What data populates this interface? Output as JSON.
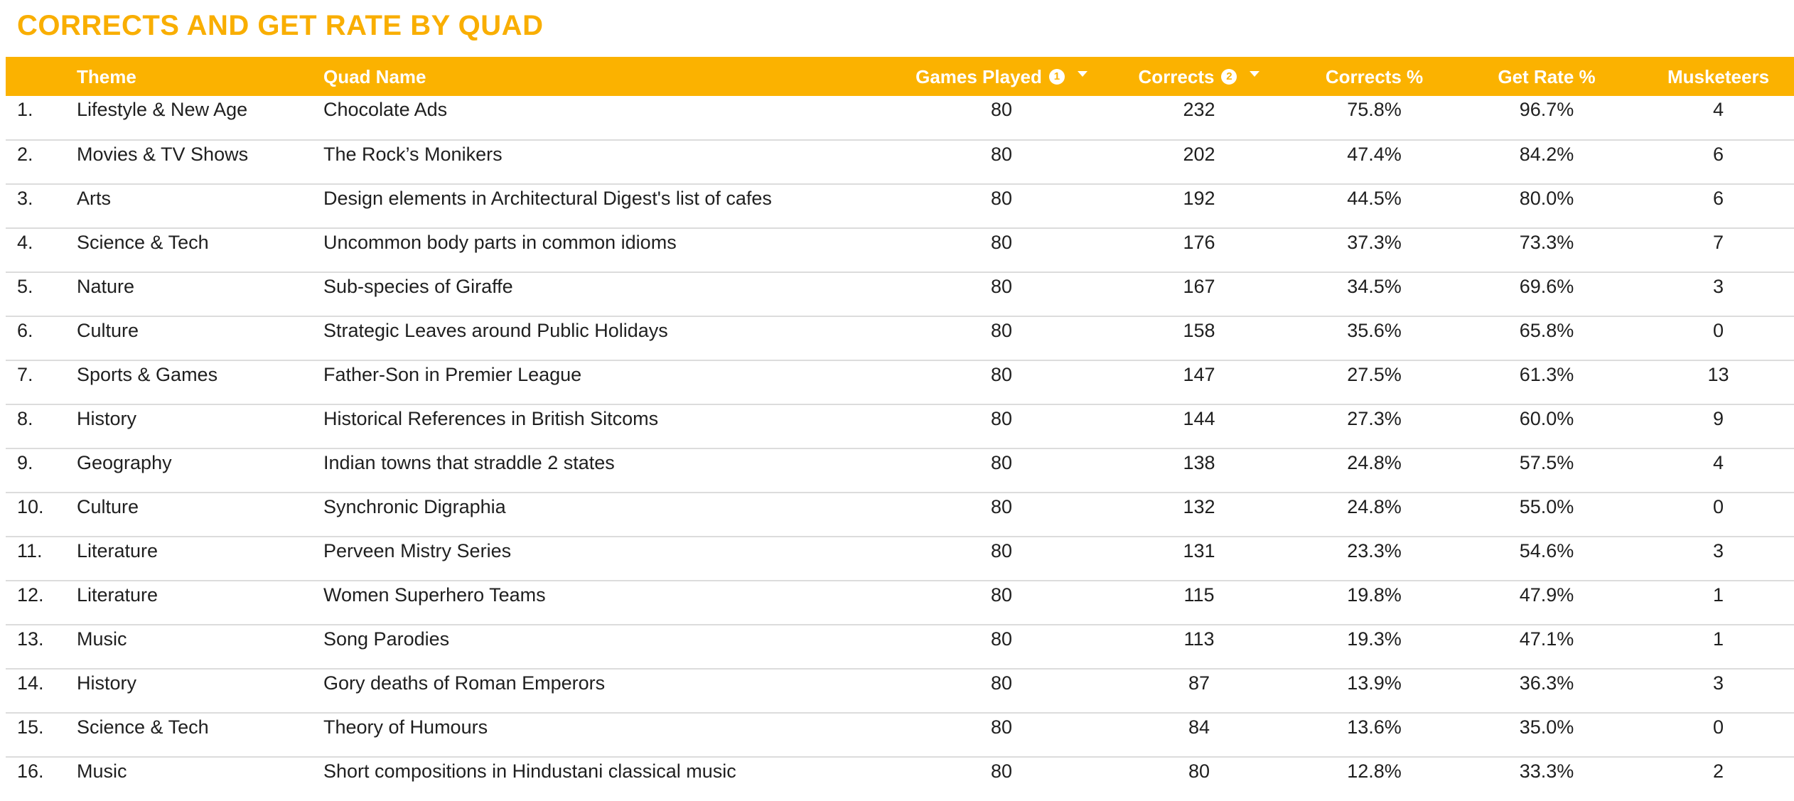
{
  "title": "CORRECTS AND GET RATE BY QUAD",
  "columns": {
    "index": "",
    "theme": "Theme",
    "quad_name": "Quad Name",
    "games_played": "Games Played",
    "games_played_badge": "1",
    "corrects": "Corrects",
    "corrects_badge": "2",
    "corrects_pct": "Corrects %",
    "get_rate_pct": "Get Rate %",
    "musketeers": "Musketeers"
  },
  "rows": [
    {
      "index": "1.",
      "theme": "Lifestyle & New Age",
      "quad_name": "Chocolate Ads",
      "games_played": "80",
      "corrects": "232",
      "corrects_pct": "75.8%",
      "get_rate_pct": "96.7%",
      "musketeers": "4"
    },
    {
      "index": "2.",
      "theme": "Movies & TV Shows",
      "quad_name": "The Rock’s Monikers",
      "games_played": "80",
      "corrects": "202",
      "corrects_pct": "47.4%",
      "get_rate_pct": "84.2%",
      "musketeers": "6"
    },
    {
      "index": "3.",
      "theme": "Arts",
      "quad_name": "Design elements in Architectural Digest's list of cafes",
      "games_played": "80",
      "corrects": "192",
      "corrects_pct": "44.5%",
      "get_rate_pct": "80.0%",
      "musketeers": "6"
    },
    {
      "index": "4.",
      "theme": "Science & Tech",
      "quad_name": "Uncommon body parts in common idioms",
      "games_played": "80",
      "corrects": "176",
      "corrects_pct": "37.3%",
      "get_rate_pct": "73.3%",
      "musketeers": "7"
    },
    {
      "index": "5.",
      "theme": "Nature",
      "quad_name": "Sub-species of Giraffe",
      "games_played": "80",
      "corrects": "167",
      "corrects_pct": "34.5%",
      "get_rate_pct": "69.6%",
      "musketeers": "3"
    },
    {
      "index": "6.",
      "theme": "Culture",
      "quad_name": "Strategic Leaves around Public Holidays",
      "games_played": "80",
      "corrects": "158",
      "corrects_pct": "35.6%",
      "get_rate_pct": "65.8%",
      "musketeers": "0"
    },
    {
      "index": "7.",
      "theme": "Sports & Games",
      "quad_name": "Father-Son in Premier League",
      "games_played": "80",
      "corrects": "147",
      "corrects_pct": "27.5%",
      "get_rate_pct": "61.3%",
      "musketeers": "13"
    },
    {
      "index": "8.",
      "theme": "History",
      "quad_name": "Historical References in British Sitcoms",
      "games_played": "80",
      "corrects": "144",
      "corrects_pct": "27.3%",
      "get_rate_pct": "60.0%",
      "musketeers": "9"
    },
    {
      "index": "9.",
      "theme": "Geography",
      "quad_name": "Indian towns that straddle 2 states",
      "games_played": "80",
      "corrects": "138",
      "corrects_pct": "24.8%",
      "get_rate_pct": "57.5%",
      "musketeers": "4"
    },
    {
      "index": "10.",
      "theme": "Culture",
      "quad_name": "Synchronic Digraphia",
      "games_played": "80",
      "corrects": "132",
      "corrects_pct": "24.8%",
      "get_rate_pct": "55.0%",
      "musketeers": "0"
    },
    {
      "index": "11.",
      "theme": "Literature",
      "quad_name": "Perveen Mistry Series",
      "games_played": "80",
      "corrects": "131",
      "corrects_pct": "23.3%",
      "get_rate_pct": "54.6%",
      "musketeers": "3"
    },
    {
      "index": "12.",
      "theme": "Literature",
      "quad_name": "Women Superhero Teams",
      "games_played": "80",
      "corrects": "115",
      "corrects_pct": "19.8%",
      "get_rate_pct": "47.9%",
      "musketeers": "1"
    },
    {
      "index": "13.",
      "theme": "Music",
      "quad_name": "Song Parodies",
      "games_played": "80",
      "corrects": "113",
      "corrects_pct": "19.3%",
      "get_rate_pct": "47.1%",
      "musketeers": "1"
    },
    {
      "index": "14.",
      "theme": "History",
      "quad_name": "Gory deaths of Roman Emperors",
      "games_played": "80",
      "corrects": "87",
      "corrects_pct": "13.9%",
      "get_rate_pct": "36.3%",
      "musketeers": "3"
    },
    {
      "index": "15.",
      "theme": "Science & Tech",
      "quad_name": "Theory of Humours",
      "games_played": "80",
      "corrects": "84",
      "corrects_pct": "13.6%",
      "get_rate_pct": "35.0%",
      "musketeers": "0"
    },
    {
      "index": "16.",
      "theme": "Music",
      "quad_name": "Short compositions in Hindustani classical music",
      "games_played": "80",
      "corrects": "80",
      "corrects_pct": "12.8%",
      "get_rate_pct": "33.3%",
      "musketeers": "2"
    }
  ],
  "colors": {
    "accent": "#FBB200",
    "title": "#F9AE00",
    "header_text": "#FFFFFF",
    "row_divider": "#DCDCDC",
    "body_text": "#1F1F1F"
  },
  "icons": {
    "info_badge": "numbered-info-icon",
    "sort": "sort-descending-icon"
  }
}
